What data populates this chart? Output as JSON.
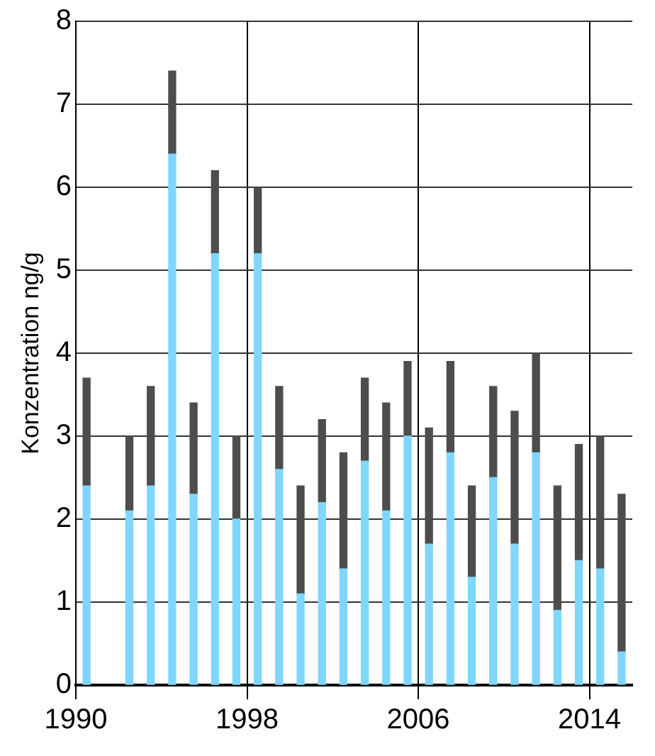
{
  "chart_data": {
    "type": "bar",
    "stacked": true,
    "ylabel": "Konzentration ng/g",
    "x": [
      1990.5,
      1992.5,
      1993.5,
      1994.5,
      1995.5,
      1996.5,
      1997.5,
      1998.5,
      1999.5,
      2000.5,
      2001.5,
      2002.5,
      2003.5,
      2004.5,
      2005.5,
      2006.5,
      2007.5,
      2008.5,
      2009.5,
      2010.5,
      2011.5,
      2012.5,
      2013.5,
      2014.5,
      2015.5
    ],
    "series": [
      {
        "color": "#7fd6ff",
        "values": [
          2.4,
          2.1,
          2.4,
          6.4,
          2.3,
          5.2,
          2.0,
          5.2,
          2.6,
          1.1,
          2.2,
          1.4,
          2.7,
          2.1,
          3.0,
          1.7,
          2.8,
          1.3,
          2.5,
          1.7,
          2.8,
          0.9,
          1.5,
          1.4,
          0.4
        ]
      },
      {
        "color": "#4d4d4d",
        "values": [
          1.3,
          0.9,
          1.2,
          1.0,
          1.1,
          1.0,
          1.0,
          0.8,
          1.0,
          1.3,
          1.0,
          1.4,
          1.0,
          1.3,
          0.9,
          1.4,
          1.1,
          1.1,
          1.1,
          1.6,
          1.2,
          1.5,
          1.4,
          1.6,
          1.9
        ]
      }
    ],
    "xlim": [
      1990,
      2016
    ],
    "xticks": [
      1990,
      1998,
      2006,
      2014
    ],
    "ylim": [
      0,
      8
    ],
    "yticks": [
      0,
      1,
      2,
      3,
      4,
      5,
      6,
      7,
      8
    ],
    "grid": true,
    "legend": false
  }
}
